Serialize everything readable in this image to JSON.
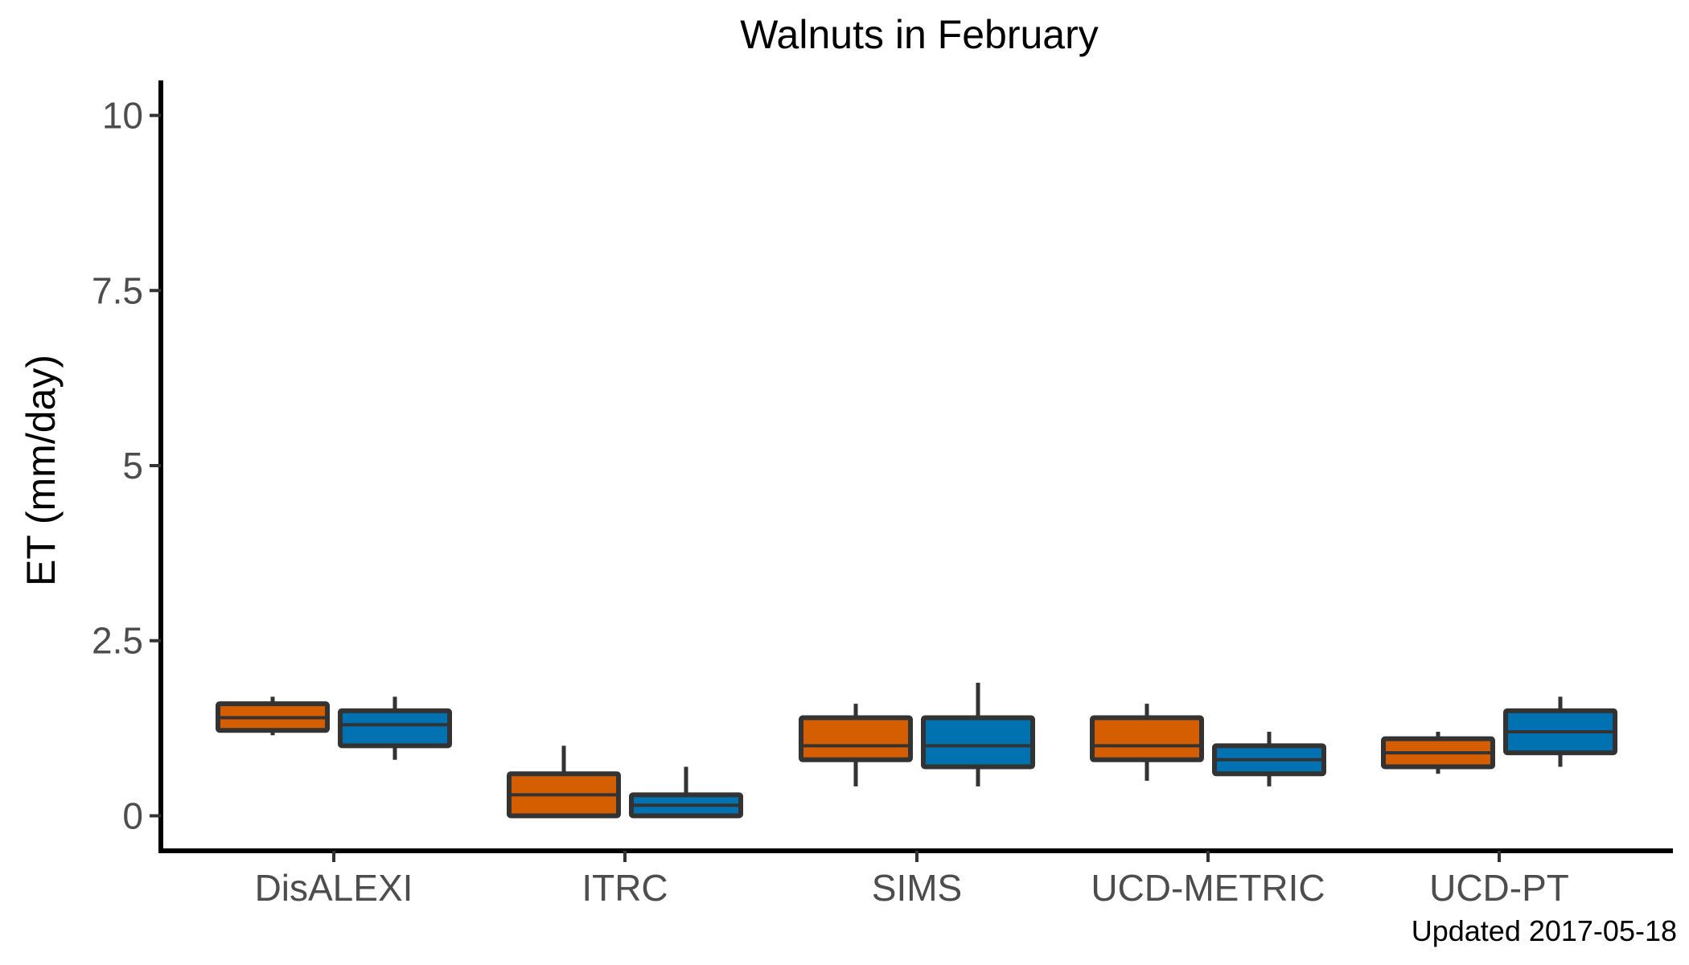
{
  "chart_data": {
    "type": "boxplot",
    "title": "Walnuts in February",
    "xlabel": "",
    "ylabel": "ET (mm/day)",
    "ylim": [
      -0.5,
      10.5
    ],
    "yticks": [
      0,
      2.5,
      5,
      7.5,
      10
    ],
    "ytick_labels": [
      "0",
      "2.5",
      "5",
      "7.5",
      "10"
    ],
    "grid": false,
    "legend": "none",
    "categories": [
      "DisALEXI",
      "ITRC",
      "SIMS",
      "UCD-METRIC",
      "UCD-PT"
    ],
    "series": [
      {
        "color": "#d55e00",
        "boxes": [
          {
            "whisker_low": 1.15,
            "q1": 1.22,
            "median": 1.4,
            "q3": 1.6,
            "whisker_high": 1.7
          },
          {
            "whisker_low": 0.0,
            "q1": 0.0,
            "median": 0.3,
            "q3": 0.6,
            "whisker_high": 1.0
          },
          {
            "whisker_low": 0.42,
            "q1": 0.8,
            "median": 1.0,
            "q3": 1.4,
            "whisker_high": 1.6
          },
          {
            "whisker_low": 0.5,
            "q1": 0.8,
            "median": 1.0,
            "q3": 1.4,
            "whisker_high": 1.6
          },
          {
            "whisker_low": 0.6,
            "q1": 0.7,
            "median": 0.9,
            "q3": 1.1,
            "whisker_high": 1.2
          }
        ]
      },
      {
        "color": "#0072b2",
        "boxes": [
          {
            "whisker_low": 0.8,
            "q1": 1.0,
            "median": 1.3,
            "q3": 1.5,
            "whisker_high": 1.7
          },
          {
            "whisker_low": 0.0,
            "q1": 0.0,
            "median": 0.15,
            "q3": 0.3,
            "whisker_high": 0.7
          },
          {
            "whisker_low": 0.42,
            "q1": 0.7,
            "median": 1.0,
            "q3": 1.4,
            "whisker_high": 1.9
          },
          {
            "whisker_low": 0.42,
            "q1": 0.6,
            "median": 0.8,
            "q3": 1.0,
            "whisker_high": 1.2
          },
          {
            "whisker_low": 0.7,
            "q1": 0.9,
            "median": 1.2,
            "q3": 1.5,
            "whisker_high": 1.7
          }
        ]
      }
    ],
    "caption": "Updated  2017-05-18"
  }
}
